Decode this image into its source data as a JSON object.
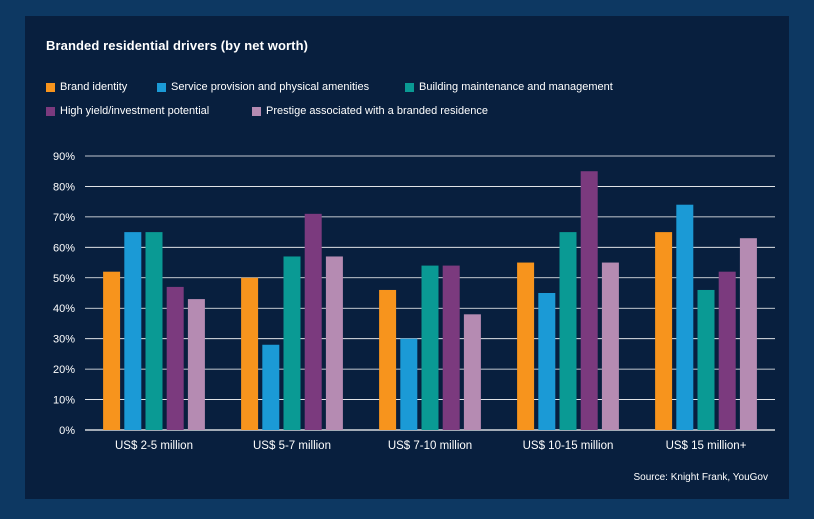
{
  "chart_data": {
    "type": "bar",
    "title": "Branded residential drivers (by net worth)",
    "categories": [
      "US$ 2-5 million",
      "US$ 5-7 million",
      "US$ 7-10 million",
      "US$ 10-15 million",
      "US$ 15 million+"
    ],
    "series": [
      {
        "name": "Brand identity",
        "color": "#f7941d",
        "values": [
          52,
          50,
          46,
          55,
          65
        ]
      },
      {
        "name": "Service provision and physical amenities",
        "color": "#1b9ad6",
        "values": [
          65,
          28,
          30,
          45,
          74
        ]
      },
      {
        "name": "Building maintenance and management",
        "color": "#0a9a94",
        "values": [
          65,
          57,
          54,
          65,
          46
        ]
      },
      {
        "name": "High yield/investment potential",
        "color": "#7b3a7e",
        "values": [
          47,
          71,
          54,
          85,
          52
        ]
      },
      {
        "name": "Prestige associated with a branded residence",
        "color": "#b58bb2",
        "values": [
          43,
          57,
          38,
          55,
          63
        ]
      }
    ],
    "yticks": [
      "90%",
      "80%",
      "70%",
      "60%",
      "50%",
      "40%",
      "30%",
      "20%",
      "10%",
      "0%"
    ],
    "ylim": [
      0,
      90
    ],
    "xlabel": "",
    "ylabel": "",
    "grid": true
  },
  "source": "Source: Knight Frank, YouGov"
}
